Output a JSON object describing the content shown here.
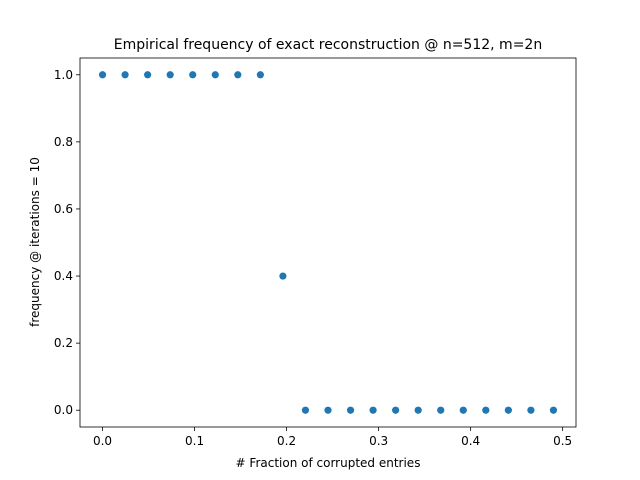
{
  "chart_data": {
    "type": "scatter",
    "title": "Empirical frequency of exact reconstruction @ n=512, m=2n",
    "xlabel": "# Fraction of corrupted entries",
    "ylabel": "frequency @ iterations = 10",
    "xlim": [
      -0.0245,
      0.5145
    ],
    "ylim": [
      -0.05,
      1.05
    ],
    "xticks": [
      0.0,
      0.1,
      0.2,
      0.3,
      0.4,
      0.5
    ],
    "xtick_labels": [
      "0.0",
      "0.1",
      "0.2",
      "0.3",
      "0.4",
      "0.5"
    ],
    "yticks": [
      0.0,
      0.2,
      0.4,
      0.6,
      0.8,
      1.0
    ],
    "ytick_labels": [
      "0.0",
      "0.2",
      "0.4",
      "0.6",
      "0.8",
      "1.0"
    ],
    "grid": false,
    "series": [
      {
        "color": "#1f77b4",
        "x": [
          0.0,
          0.0245,
          0.049,
          0.0735,
          0.098,
          0.1225,
          0.147,
          0.1715,
          0.196,
          0.2205,
          0.245,
          0.2695,
          0.294,
          0.3185,
          0.343,
          0.3675,
          0.392,
          0.4165,
          0.441,
          0.4655,
          0.49
        ],
        "y": [
          1.0,
          1.0,
          1.0,
          1.0,
          1.0,
          1.0,
          1.0,
          1.0,
          0.4,
          0.0,
          0.0,
          0.0,
          0.0,
          0.0,
          0.0,
          0.0,
          0.0,
          0.0,
          0.0,
          0.0,
          0.0
        ]
      }
    ]
  }
}
